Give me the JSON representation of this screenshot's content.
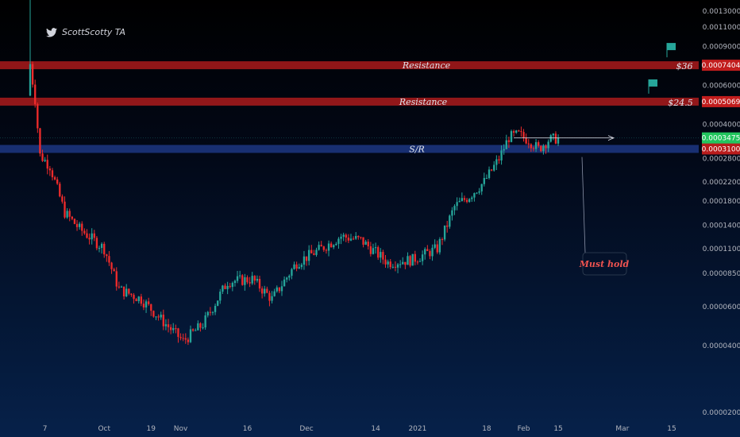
{
  "watermark": {
    "icon": "twitter-bird-icon",
    "text": "ScottScotty TA"
  },
  "chart_data": {
    "type": "candlestick",
    "y_axis": {
      "scale": "log",
      "range": [
        2e-05,
        0.0015
      ],
      "tick_labels": [
        "0.0013000",
        "0.0011000",
        "0.0009000",
        "0.0006000",
        "0.0004000",
        "0.0002800",
        "0.0002200",
        "0.0001800",
        "0.0001400",
        "0.0001100",
        "0.0000850",
        "0.0000600",
        "0.0000400",
        "0.0000200"
      ],
      "ticks": [
        0.0013,
        0.0011,
        0.0009,
        0.0006,
        0.0004,
        0.00028,
        0.00022,
        0.00018,
        0.00014,
        0.00011,
        8.5e-05,
        6e-05,
        4e-05,
        2e-05
      ]
    },
    "x_axis": {
      "tick_labels": [
        "7",
        "Oct",
        "19",
        "Nov",
        "16",
        "Dec",
        "14",
        "2021",
        "18",
        "Feb",
        "15",
        "Mar",
        "15"
      ],
      "tick_days": [
        6,
        30,
        49,
        61,
        88,
        112,
        140,
        157,
        185,
        200,
        214,
        240,
        260
      ]
    },
    "levels": [
      {
        "label": "Resistance",
        "price": 0.0007404,
        "price_label": "0.0007404",
        "target_label": "$36",
        "color": "#c21d1d"
      },
      {
        "label": "Resistance",
        "price": 0.0005069,
        "price_label": "0.0005069",
        "target_label": "$24.5",
        "color": "#c21d1d"
      },
      {
        "label": "S/R",
        "price": 0.00031,
        "price_label": "0.0003100",
        "color": "#1e3a8a"
      }
    ],
    "current_price": {
      "value": 0.0003475,
      "label": "0.0003475",
      "color": "#22c55e"
    },
    "annotation": "Must hold",
    "colors": {
      "up": "#26a69a",
      "down": "#ef2b2b",
      "up_current": "#4caf50"
    },
    "key_closes": [
      {
        "day": 0,
        "price": 0.00075
      },
      {
        "day": 2,
        "price": 0.00052
      },
      {
        "day": 4,
        "price": 0.00029
      },
      {
        "day": 8,
        "price": 0.00026
      },
      {
        "day": 14,
        "price": 0.00016
      },
      {
        "day": 20,
        "price": 0.000135
      },
      {
        "day": 30,
        "price": 0.00011
      },
      {
        "day": 36,
        "price": 7.2e-05
      },
      {
        "day": 45,
        "price": 6.5e-05
      },
      {
        "day": 55,
        "price": 5e-05
      },
      {
        "day": 62,
        "price": 4.2e-05
      },
      {
        "day": 70,
        "price": 5e-05
      },
      {
        "day": 80,
        "price": 7.8e-05
      },
      {
        "day": 90,
        "price": 8e-05
      },
      {
        "day": 98,
        "price": 6.5e-05
      },
      {
        "day": 108,
        "price": 9.5e-05
      },
      {
        "day": 118,
        "price": 0.00011
      },
      {
        "day": 126,
        "price": 0.000125
      },
      {
        "day": 134,
        "price": 0.00012
      },
      {
        "day": 145,
        "price": 9.5e-05
      },
      {
        "day": 155,
        "price": 9.8e-05
      },
      {
        "day": 165,
        "price": 0.00011
      },
      {
        "day": 172,
        "price": 0.00017
      },
      {
        "day": 178,
        "price": 0.00019
      },
      {
        "day": 184,
        "price": 0.00022
      },
      {
        "day": 190,
        "price": 0.00028
      },
      {
        "day": 194,
        "price": 0.00035
      },
      {
        "day": 198,
        "price": 0.00036
      },
      {
        "day": 202,
        "price": 0.00034
      },
      {
        "day": 206,
        "price": 0.00031
      },
      {
        "day": 210,
        "price": 0.00034
      },
      {
        "day": 214,
        "price": 0.0003475
      }
    ],
    "grid": false
  }
}
